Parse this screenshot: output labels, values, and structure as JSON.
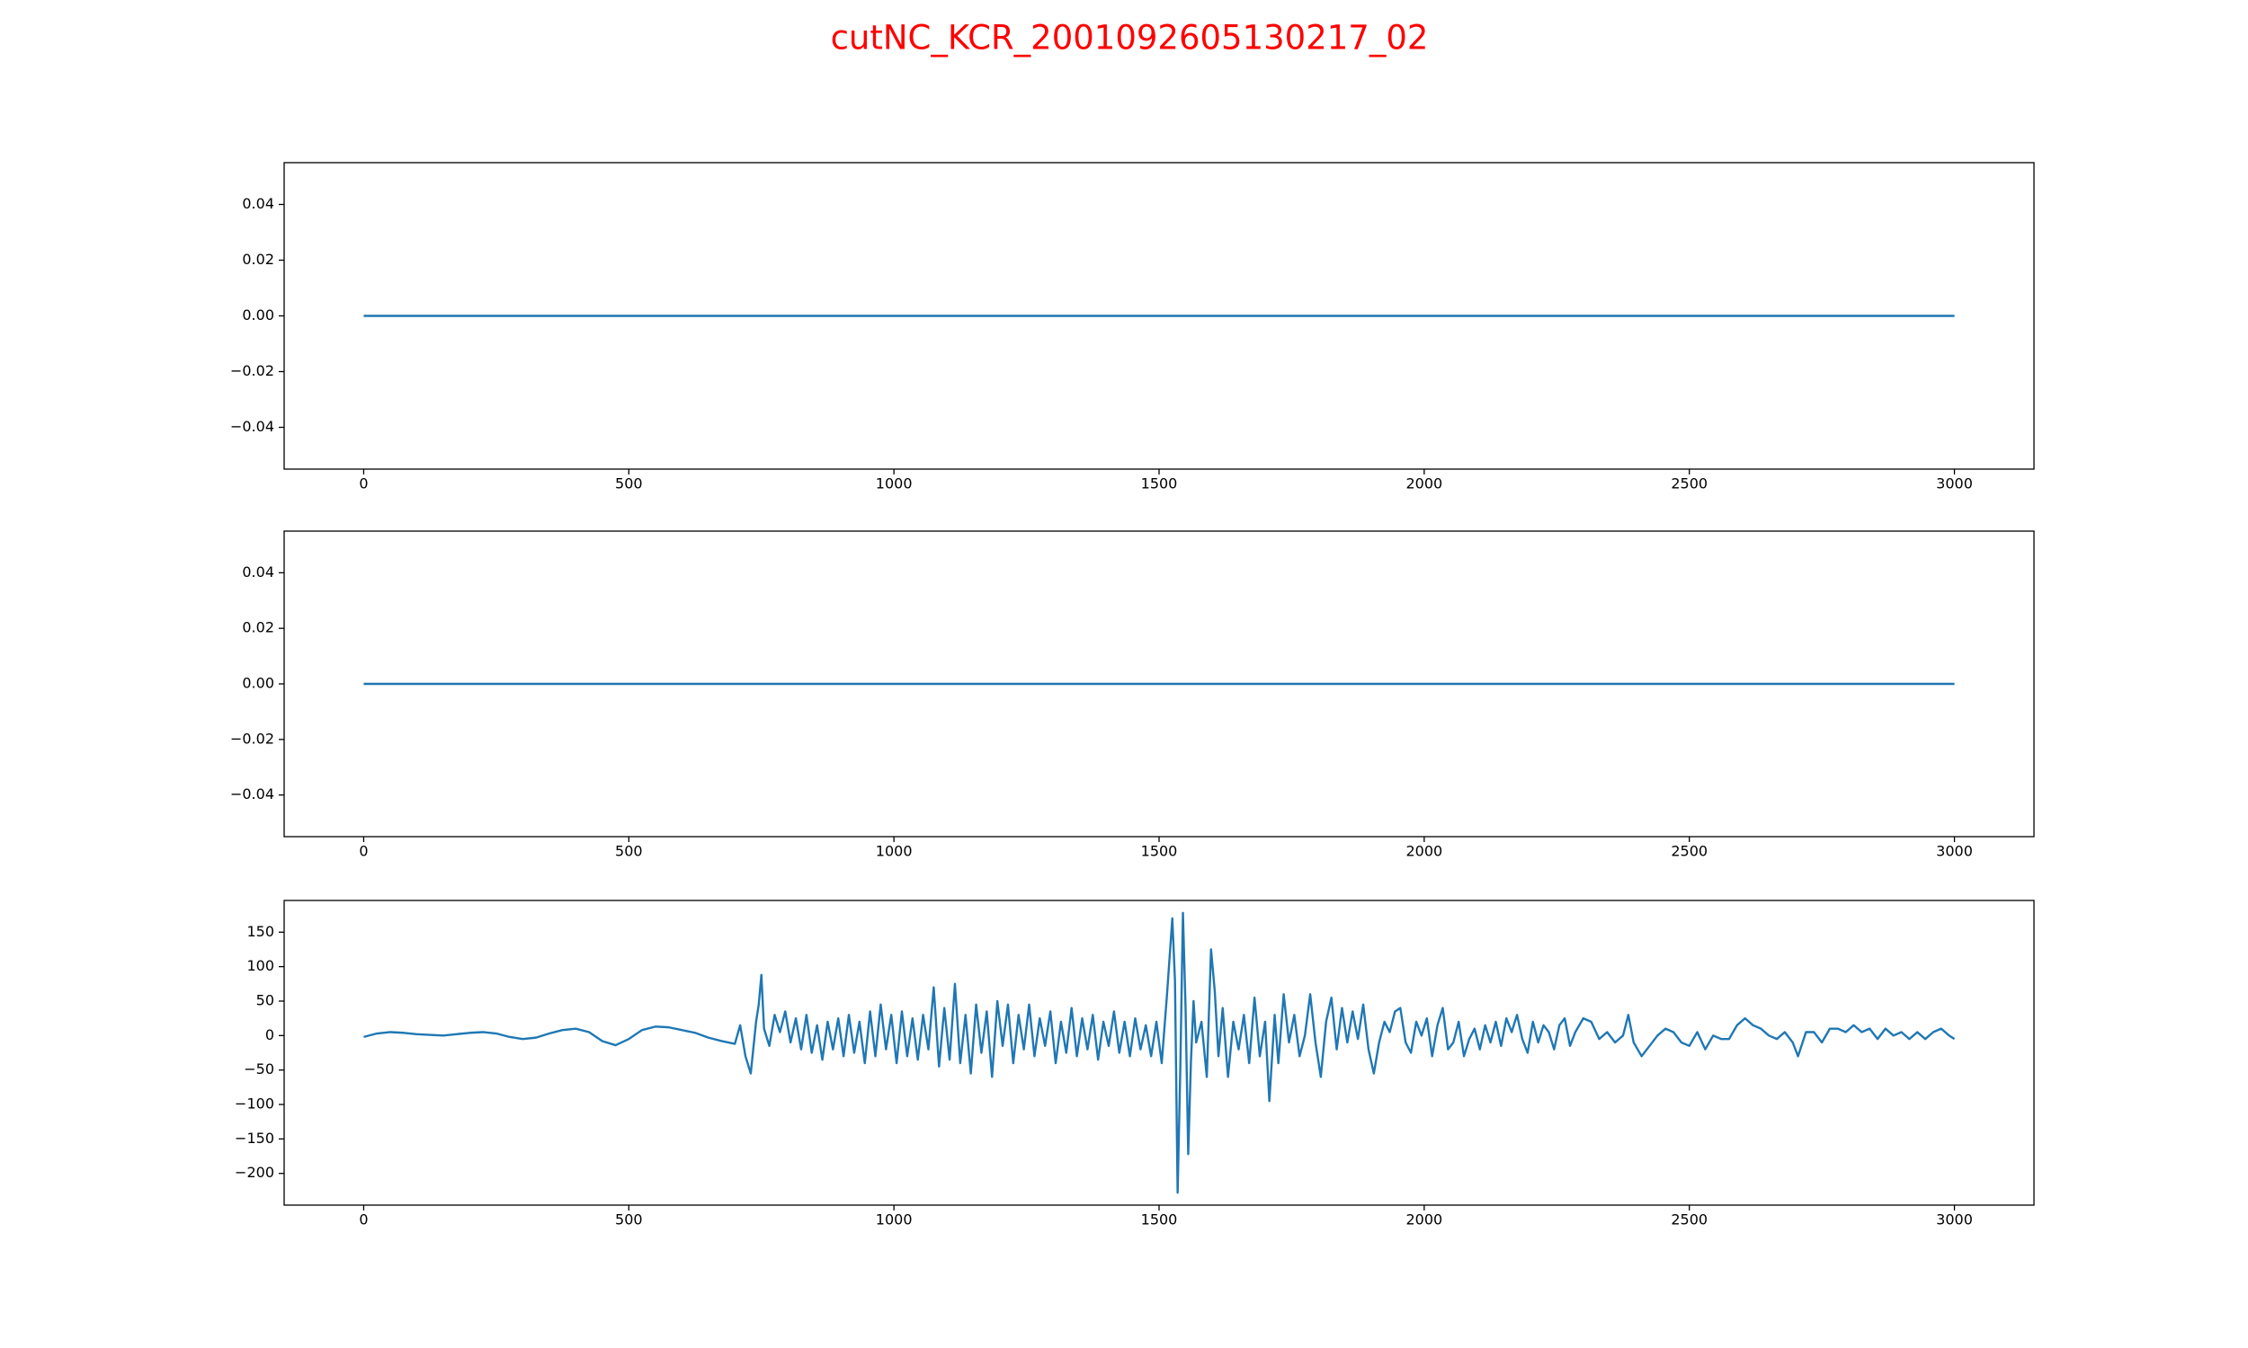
{
  "title": "cutNC_KCR_2001092605130217_02",
  "chart_data": [
    {
      "type": "line",
      "x": [
        0,
        3000
      ],
      "values": [
        0,
        0
      ],
      "color": "#1f77b4",
      "xlim": [
        -150,
        3150
      ],
      "xticks": [
        0,
        500,
        1000,
        1500,
        2000,
        2500,
        3000
      ],
      "ylim": [
        -0.055,
        0.055
      ],
      "yticks": [
        {
          "value": -0.04,
          "label": "−0.04"
        },
        {
          "value": -0.02,
          "label": "−0.02"
        },
        {
          "value": 0,
          "label": "0.00"
        },
        0.02,
        0.04
      ]
    },
    {
      "type": "line",
      "x": [
        0,
        3000
      ],
      "values": [
        0,
        0
      ],
      "color": "#1f77b4",
      "xlim": [
        -150,
        3150
      ],
      "xticks": [
        0,
        500,
        1000,
        1500,
        2000,
        2500,
        3000
      ],
      "ylim": [
        -0.055,
        0.055
      ],
      "yticks": [
        {
          "value": -0.04,
          "label": "−0.04"
        },
        {
          "value": -0.02,
          "label": "−0.02"
        },
        {
          "value": 0,
          "label": "0.00"
        },
        0.02,
        0.04
      ]
    },
    {
      "type": "line",
      "color": "#1f77b4",
      "x": [
        0,
        25,
        50,
        75,
        100,
        125,
        150,
        175,
        200,
        225,
        250,
        275,
        300,
        325,
        350,
        375,
        400,
        425,
        450,
        475,
        500,
        525,
        550,
        575,
        600,
        625,
        650,
        675,
        700,
        710,
        720,
        730,
        740,
        745,
        750,
        755,
        765,
        775,
        785,
        795,
        805,
        815,
        825,
        835,
        845,
        855,
        865,
        875,
        885,
        895,
        905,
        915,
        925,
        935,
        945,
        955,
        965,
        975,
        985,
        995,
        1005,
        1015,
        1025,
        1035,
        1045,
        1055,
        1065,
        1075,
        1085,
        1095,
        1105,
        1115,
        1125,
        1135,
        1145,
        1155,
        1165,
        1175,
        1185,
        1195,
        1205,
        1215,
        1225,
        1235,
        1245,
        1255,
        1265,
        1275,
        1285,
        1295,
        1305,
        1315,
        1325,
        1335,
        1345,
        1355,
        1365,
        1375,
        1385,
        1395,
        1405,
        1415,
        1425,
        1435,
        1445,
        1455,
        1465,
        1475,
        1485,
        1495,
        1505,
        1515,
        1525,
        1530,
        1535,
        1540,
        1545,
        1550,
        1555,
        1560,
        1565,
        1570,
        1580,
        1590,
        1598,
        1605,
        1612,
        1620,
        1630,
        1640,
        1650,
        1660,
        1670,
        1680,
        1690,
        1700,
        1708,
        1718,
        1725,
        1735,
        1745,
        1755,
        1765,
        1775,
        1785,
        1795,
        1805,
        1815,
        1825,
        1835,
        1845,
        1855,
        1865,
        1875,
        1885,
        1895,
        1905,
        1915,
        1925,
        1935,
        1945,
        1955,
        1965,
        1975,
        1985,
        1995,
        2005,
        2015,
        2025,
        2035,
        2045,
        2055,
        2065,
        2075,
        2085,
        2095,
        2105,
        2115,
        2125,
        2135,
        2145,
        2155,
        2165,
        2175,
        2185,
        2195,
        2205,
        2215,
        2225,
        2235,
        2245,
        2255,
        2265,
        2275,
        2285,
        2300,
        2315,
        2330,
        2345,
        2360,
        2375,
        2385,
        2395,
        2410,
        2425,
        2440,
        2455,
        2470,
        2485,
        2500,
        2515,
        2530,
        2545,
        2560,
        2575,
        2590,
        2605,
        2620,
        2635,
        2650,
        2665,
        2680,
        2695,
        2705,
        2720,
        2735,
        2750,
        2765,
        2780,
        2795,
        2810,
        2825,
        2840,
        2855,
        2870,
        2885,
        2900,
        2915,
        2930,
        2945,
        2960,
        2975,
        2990,
        3000
      ],
      "values": [
        -2,
        3,
        5,
        4,
        2,
        1,
        0,
        2,
        4,
        5,
        3,
        -2,
        -5,
        -3,
        3,
        8,
        10,
        5,
        -8,
        -14,
        -5,
        8,
        13,
        12,
        8,
        4,
        -3,
        -8,
        -12,
        15,
        -30,
        -55,
        20,
        45,
        88,
        10,
        -15,
        30,
        5,
        35,
        -10,
        25,
        -20,
        30,
        -25,
        15,
        -35,
        20,
        -20,
        25,
        -30,
        30,
        -25,
        20,
        -40,
        35,
        -30,
        45,
        -20,
        30,
        -40,
        35,
        -30,
        25,
        -35,
        30,
        -20,
        70,
        -45,
        40,
        -35,
        75,
        -40,
        30,
        -55,
        45,
        -25,
        35,
        -60,
        50,
        -15,
        45,
        -40,
        30,
        -20,
        45,
        -30,
        25,
        -15,
        35,
        -40,
        20,
        -25,
        40,
        -30,
        25,
        -20,
        30,
        -35,
        20,
        -15,
        35,
        -25,
        20,
        -30,
        25,
        -20,
        15,
        -30,
        20,
        -40,
        60,
        170,
        80,
        -228,
        -50,
        178,
        40,
        -172,
        -40,
        50,
        -10,
        20,
        -60,
        125,
        65,
        -30,
        40,
        -60,
        20,
        -20,
        30,
        -40,
        55,
        -30,
        20,
        -95,
        30,
        -40,
        60,
        -10,
        30,
        -30,
        0,
        60,
        -10,
        -60,
        20,
        55,
        -20,
        40,
        -10,
        35,
        -5,
        45,
        -20,
        -55,
        -10,
        20,
        5,
        35,
        40,
        -10,
        -25,
        20,
        0,
        25,
        -30,
        15,
        40,
        -20,
        -10,
        20,
        -30,
        -5,
        10,
        -20,
        15,
        -10,
        20,
        -15,
        25,
        5,
        30,
        -5,
        -25,
        20,
        -10,
        15,
        5,
        -20,
        15,
        25,
        -15,
        5,
        25,
        20,
        -5,
        5,
        -10,
        0,
        30,
        -10,
        -30,
        -15,
        0,
        10,
        5,
        -10,
        -15,
        5,
        -20,
        0,
        -5,
        -5,
        15,
        25,
        15,
        10,
        0,
        -5,
        5,
        -10,
        -30,
        5,
        5,
        -10,
        10,
        10,
        5,
        15,
        5,
        10,
        -5,
        10,
        0,
        5,
        -5,
        5,
        -5,
        5,
        10,
        0,
        -5
      ],
      "xlim": [
        -150,
        3150
      ],
      "xticks": [
        0,
        500,
        1000,
        1500,
        2000,
        2500,
        3000
      ],
      "ylim": [
        -246,
        196
      ],
      "yticks": [
        {
          "value": -200,
          "label": "−200"
        },
        {
          "value": -150,
          "label": "−150"
        },
        {
          "value": -100,
          "label": "−100"
        },
        {
          "value": -50,
          "label": "−50"
        },
        0,
        50,
        100,
        150
      ]
    }
  ]
}
